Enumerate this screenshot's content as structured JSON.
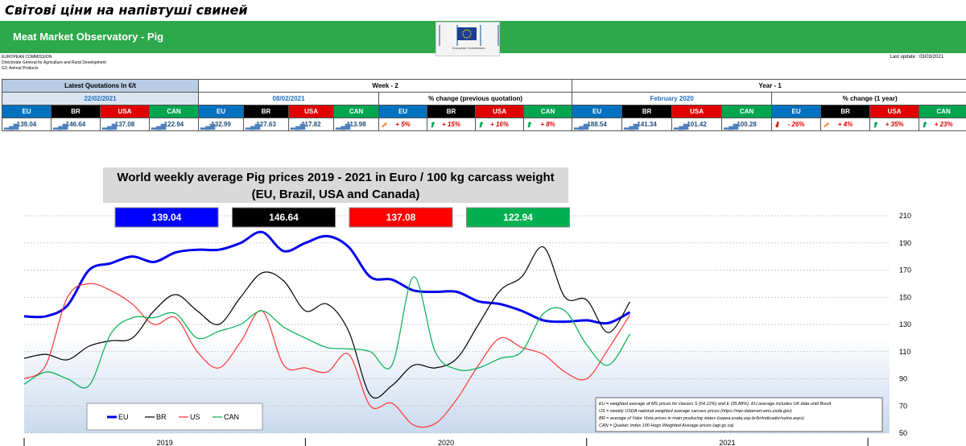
{
  "page_heading": "Світові ціни на напівтуші свиней",
  "banner": {
    "title": "Meat Market Observatory - Pig",
    "logo_text": "European Commission"
  },
  "agency": [
    "EUROPEAN COMMISSION",
    "Directorate General for Agriculture and Rural Development",
    "G3. Animal Products"
  ],
  "last_update": "Last update :  03/03/2021",
  "quotations": {
    "latest_header": "Latest Quotations In €/t",
    "week_header": "Week - 2",
    "year_header": "Year - 1",
    "latest_date": "22/02/2021",
    "week_date": "08/02/2021",
    "week_change_header": "% change (previous quotation)",
    "year_date": "February 2020",
    "year_change_header": "% change (1 year)",
    "countries": [
      "EU",
      "BR",
      "USA",
      "CAN"
    ],
    "latest_values": [
      "139.04",
      "146.64",
      "137.08",
      "122.94"
    ],
    "week_values": [
      "132.99",
      "127.63",
      "117.82",
      "113.98"
    ],
    "week_changes": [
      "+ 5%",
      "+ 15%",
      "+ 16%",
      "+ 8%"
    ],
    "year_values": [
      "188.54",
      "141.34",
      "101.42",
      "100.28"
    ],
    "year_changes": [
      "- 26%",
      "+ 4%",
      "+ 35%",
      "+ 23%"
    ],
    "week_arrows": [
      "orange",
      "green",
      "green",
      "green"
    ],
    "year_arrows": [
      "red",
      "orange",
      "green",
      "green"
    ]
  },
  "chart_data": {
    "type": "line",
    "title_line1": "World weekly average Pig prices 2019 - 2021  in Euro / 100 kg carcass weight",
    "title_line2": "(EU, Brazil, USA and Canada)",
    "latest_boxes": [
      {
        "value": "139.04",
        "color": "#0000ff"
      },
      {
        "value": "146.64",
        "color": "#000000"
      },
      {
        "value": "137.08",
        "color": "#ff0000"
      },
      {
        "value": "122.94",
        "color": "#00b050"
      }
    ],
    "ylim": [
      50,
      210
    ],
    "yticks": [
      "210",
      "190",
      "170",
      "150",
      "130",
      "110",
      "90",
      "70",
      "50"
    ],
    "year_labels": [
      "2019",
      "2020",
      "2021"
    ],
    "legend": [
      "EU",
      "BR",
      "US",
      "CAN"
    ],
    "notes": [
      "EU    = weighted average of MS prices for classes S (64.12%) and E (35.88%). EU average includes UK data  until Brexit",
      "US    = weekly USDA national weighted average carcass prices (https://mpr.datamart.ams.usda.gov)",
      "BR    = average of Valor Vista prices in main producing states (cepea.esalq.usp.br/br/indicador/suino.aspx)",
      "CAN = Quebec Index 100 Hogs Weighted Average prices (agr.gc.ca)"
    ],
    "x_weeks": [
      0,
      4,
      8,
      12,
      16,
      20,
      24,
      28,
      32,
      36,
      40,
      44,
      48,
      52,
      56,
      60,
      64,
      68,
      72,
      76,
      80,
      84,
      88,
      92,
      96,
      100,
      104,
      108,
      112
    ],
    "series": [
      {
        "name": "EU",
        "color": "#0000ee",
        "width": 3,
        "values": [
          136,
          136,
          144,
          170,
          175,
          180,
          176,
          183,
          185,
          185,
          190,
          198,
          184,
          190,
          195,
          187,
          165,
          163,
          155,
          154,
          154,
          147,
          145,
          140,
          133,
          132,
          133,
          131,
          139
        ]
      },
      {
        "name": "BR",
        "color": "#000000",
        "width": 1.2,
        "values": [
          105,
          108,
          104,
          114,
          118,
          120,
          140,
          152,
          140,
          130,
          150,
          168,
          162,
          140,
          145,
          125,
          78,
          85,
          100,
          98,
          105,
          130,
          155,
          165,
          187,
          150,
          148,
          124,
          146.64
        ]
      },
      {
        "name": "US",
        "color": "#ff3333",
        "width": 1.2,
        "values": [
          90,
          100,
          150,
          160,
          155,
          145,
          130,
          135,
          110,
          98,
          117,
          140,
          100,
          98,
          95,
          108,
          70,
          72,
          56,
          57,
          75,
          100,
          120,
          113,
          108,
          95,
          90,
          112,
          137.08
        ]
      },
      {
        "name": "CAN",
        "color": "#00b050",
        "width": 1.2,
        "values": [
          86,
          95,
          90,
          85,
          123,
          135,
          135,
          138,
          120,
          125,
          130,
          140,
          128,
          120,
          113,
          112,
          110,
          100,
          165,
          110,
          97,
          98,
          105,
          110,
          138,
          140,
          115,
          100,
          122.94
        ]
      }
    ]
  }
}
